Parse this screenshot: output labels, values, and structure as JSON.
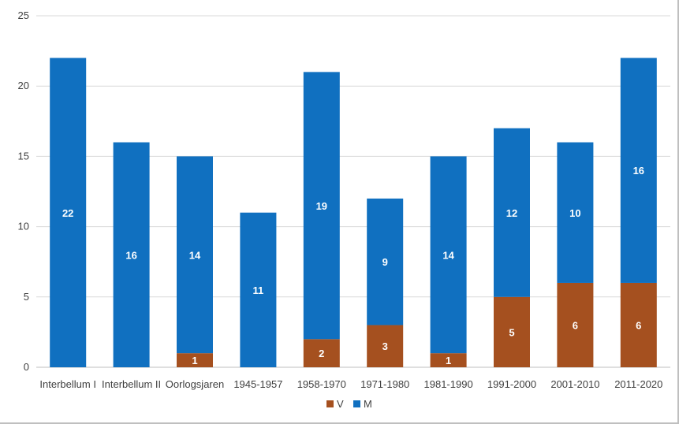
{
  "chart_data": {
    "type": "bar",
    "stacked": true,
    "categories": [
      "Interbellum I",
      "Interbellum II",
      "Oorlogsjaren",
      "1945-1957",
      "1958-1970",
      "1971-1980",
      "1981-1990",
      "1991-2000",
      "2001-2010",
      "2011-2020"
    ],
    "series": [
      {
        "name": "V",
        "color": "#a5501f",
        "values": [
          0,
          0,
          1,
          0,
          2,
          3,
          1,
          5,
          6,
          6
        ]
      },
      {
        "name": "M",
        "color": "#1070c0",
        "values": [
          22,
          16,
          14,
          11,
          19,
          9,
          14,
          12,
          10,
          16
        ]
      }
    ],
    "ylim": [
      0,
      25
    ],
    "yticks": [
      0,
      5,
      10,
      15,
      20,
      25
    ],
    "grid": true,
    "legend_position": "bottom",
    "data_labels": true
  }
}
